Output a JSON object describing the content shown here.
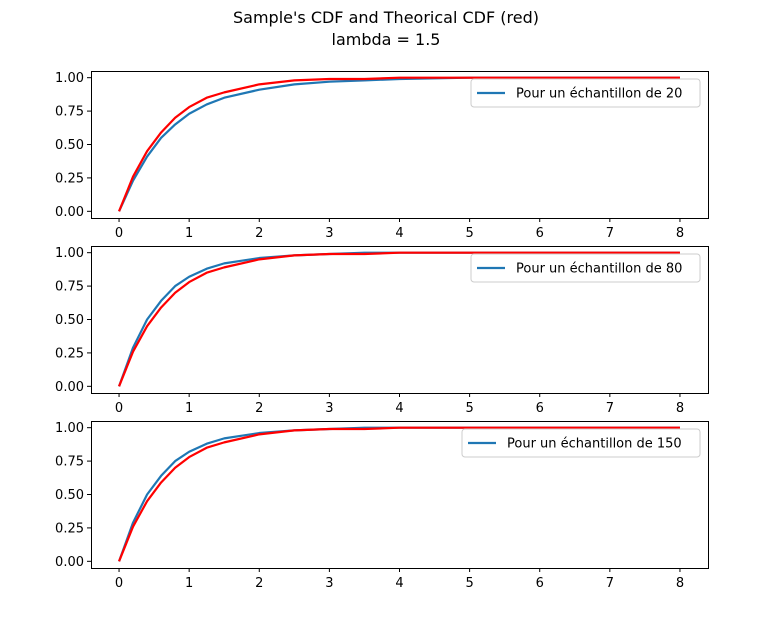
{
  "figure": {
    "title_line1": "Sample's CDF and Theorical CDF (red)",
    "title_line2": "lambda = 1.5"
  },
  "colors": {
    "sample": "#1f77b4",
    "theoretical": "#ff0000"
  },
  "chart_data": [
    {
      "type": "line",
      "xlim": [
        -0.4,
        8.4
      ],
      "ylim": [
        -0.05,
        1.05
      ],
      "x_ticks": [
        0,
        1,
        2,
        3,
        4,
        5,
        6,
        7,
        8
      ],
      "x_tick_labels": [
        "0",
        "1",
        "2",
        "3",
        "4",
        "5",
        "6",
        "7",
        "8"
      ],
      "y_ticks": [
        0,
        0.25,
        0.5,
        0.75,
        1.0
      ],
      "y_tick_labels": [
        "0.00",
        "0.25",
        "0.50",
        "0.75",
        "1.00"
      ],
      "legend": {
        "position": "upper-right",
        "entries": [
          "Pour un échantillon de 20"
        ]
      },
      "grid": false,
      "series": [
        {
          "name": "Pour un échantillon de 20",
          "color": "#1f77b4",
          "x": [
            0,
            0.2,
            0.4,
            0.6,
            0.8,
            1,
            1.25,
            1.5,
            2,
            2.5,
            3,
            3.5,
            4,
            5,
            6,
            7,
            8
          ],
          "y": [
            0,
            0.23,
            0.41,
            0.55,
            0.65,
            0.73,
            0.8,
            0.85,
            0.91,
            0.95,
            0.97,
            0.98,
            0.99,
            1.0,
            1.0,
            1.0,
            1.0
          ]
        },
        {
          "color": "#ff0000",
          "x": [
            0,
            0.2,
            0.4,
            0.6,
            0.8,
            1,
            1.25,
            1.5,
            2,
            2.5,
            3,
            3.5,
            4,
            5,
            6,
            7,
            8
          ],
          "y": [
            0,
            0.26,
            0.45,
            0.59,
            0.7,
            0.78,
            0.85,
            0.89,
            0.95,
            0.98,
            0.99,
            0.99,
            1.0,
            1.0,
            1.0,
            1.0,
            1.0
          ]
        }
      ]
    },
    {
      "type": "line",
      "xlim": [
        -0.4,
        8.4
      ],
      "ylim": [
        -0.05,
        1.05
      ],
      "x_ticks": [
        0,
        1,
        2,
        3,
        4,
        5,
        6,
        7,
        8
      ],
      "x_tick_labels": [
        "0",
        "1",
        "2",
        "3",
        "4",
        "5",
        "6",
        "7",
        "8"
      ],
      "y_ticks": [
        0,
        0.25,
        0.5,
        0.75,
        1.0
      ],
      "y_tick_labels": [
        "0.00",
        "0.25",
        "0.50",
        "0.75",
        "1.00"
      ],
      "legend": {
        "position": "upper-right",
        "entries": [
          "Pour un échantillon de 80"
        ]
      },
      "grid": false,
      "series": [
        {
          "name": "Pour un échantillon de 80",
          "color": "#1f77b4",
          "x": [
            0,
            0.2,
            0.4,
            0.6,
            0.8,
            1,
            1.25,
            1.5,
            2,
            2.5,
            3,
            3.5,
            4,
            5,
            6,
            7,
            8
          ],
          "y": [
            0,
            0.29,
            0.5,
            0.64,
            0.75,
            0.82,
            0.88,
            0.92,
            0.96,
            0.98,
            0.99,
            1.0,
            1.0,
            1.0,
            1.0,
            1.0,
            1.0
          ]
        },
        {
          "color": "#ff0000",
          "x": [
            0,
            0.2,
            0.4,
            0.6,
            0.8,
            1,
            1.25,
            1.5,
            2,
            2.5,
            3,
            3.5,
            4,
            5,
            6,
            7,
            8
          ],
          "y": [
            0,
            0.26,
            0.45,
            0.59,
            0.7,
            0.78,
            0.85,
            0.89,
            0.95,
            0.98,
            0.99,
            0.99,
            1.0,
            1.0,
            1.0,
            1.0,
            1.0
          ]
        }
      ]
    },
    {
      "type": "line",
      "xlim": [
        -0.4,
        8.4
      ],
      "ylim": [
        -0.05,
        1.05
      ],
      "x_ticks": [
        0,
        1,
        2,
        3,
        4,
        5,
        6,
        7,
        8
      ],
      "x_tick_labels": [
        "0",
        "1",
        "2",
        "3",
        "4",
        "5",
        "6",
        "7",
        "8"
      ],
      "y_ticks": [
        0,
        0.25,
        0.5,
        0.75,
        1.0
      ],
      "y_tick_labels": [
        "0.00",
        "0.25",
        "0.50",
        "0.75",
        "1.00"
      ],
      "legend": {
        "position": "upper-right",
        "entries": [
          "Pour un échantillon de 150"
        ]
      },
      "grid": false,
      "series": [
        {
          "name": "Pour un échantillon de 150",
          "color": "#1f77b4",
          "x": [
            0,
            0.2,
            0.4,
            0.6,
            0.8,
            1,
            1.25,
            1.5,
            2,
            2.5,
            3,
            3.5,
            4,
            5,
            6,
            7,
            8
          ],
          "y": [
            0,
            0.29,
            0.5,
            0.64,
            0.75,
            0.82,
            0.88,
            0.92,
            0.96,
            0.98,
            0.99,
            1.0,
            1.0,
            1.0,
            1.0,
            1.0,
            1.0
          ]
        },
        {
          "color": "#ff0000",
          "x": [
            0,
            0.2,
            0.4,
            0.6,
            0.8,
            1,
            1.25,
            1.5,
            2,
            2.5,
            3,
            3.5,
            4,
            5,
            6,
            7,
            8
          ],
          "y": [
            0,
            0.26,
            0.45,
            0.59,
            0.7,
            0.78,
            0.85,
            0.89,
            0.95,
            0.98,
            0.99,
            0.99,
            1.0,
            1.0,
            1.0,
            1.0,
            1.0
          ]
        }
      ]
    }
  ]
}
